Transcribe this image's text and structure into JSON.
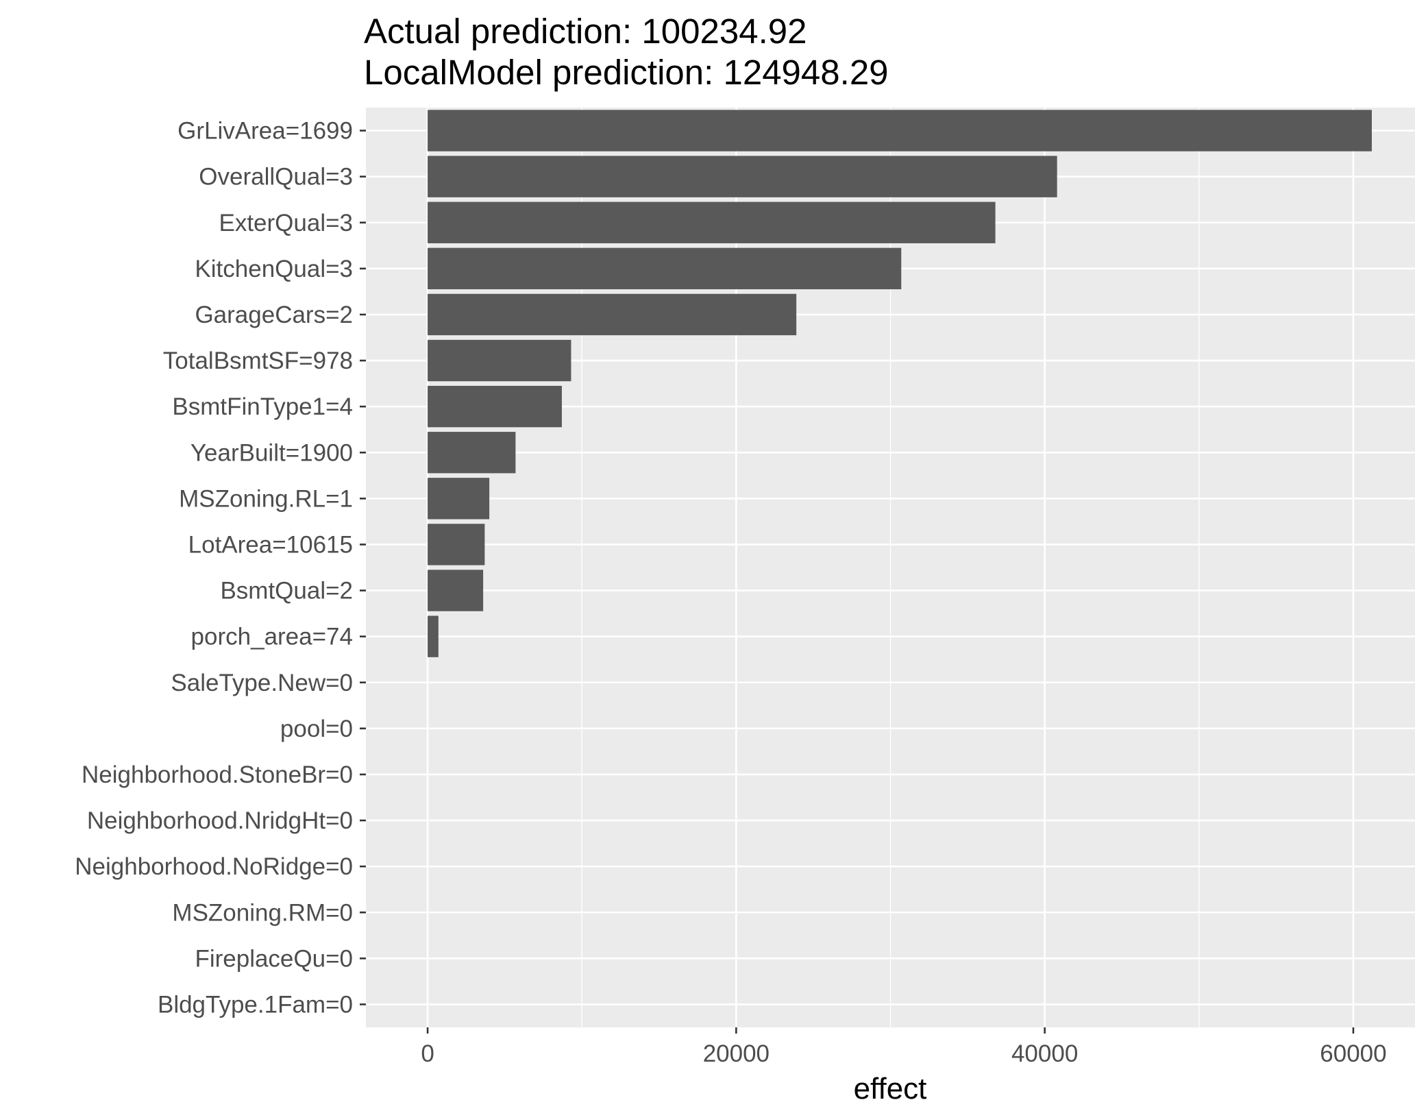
{
  "chart_data": {
    "type": "bar",
    "orientation": "horizontal",
    "title_lines": [
      "Actual prediction: 100234.92",
      "LocalModel prediction: 124948.29"
    ],
    "xlabel": "effect",
    "ylabel": "",
    "xlim": [
      -4000,
      64000
    ],
    "x_ticks": [
      0,
      20000,
      40000,
      60000
    ],
    "x_tick_labels": [
      "0",
      "20000",
      "40000",
      "60000"
    ],
    "grid": true,
    "categories": [
      "GrLivArea=1699",
      "OverallQual=3",
      "ExterQual=3",
      "KitchenQual=3",
      "GarageCars=2",
      "TotalBsmtSF=978",
      "BsmtFinType1=4",
      "YearBuilt=1900",
      "MSZoning.RL=1",
      "LotArea=10615",
      "BsmtQual=2",
      "porch_area=74",
      "SaleType.New=0",
      "pool=0",
      "Neighborhood.StoneBr=0",
      "Neighborhood.NridgHt=0",
      "Neighborhood.NoRidge=0",
      "MSZoning.RM=0",
      "FireplaceQu=0",
      "BldgType.1Fam=0"
    ],
    "values": [
      61200,
      40800,
      36800,
      30700,
      23900,
      9300,
      8700,
      5700,
      4000,
      3700,
      3600,
      700,
      0,
      0,
      0,
      0,
      0,
      0,
      0,
      0
    ],
    "colors": {
      "bar": "#595959",
      "panel": "#ebebeb",
      "grid": "#ffffff",
      "text": "#4d4d4d",
      "title": "#000000"
    }
  }
}
